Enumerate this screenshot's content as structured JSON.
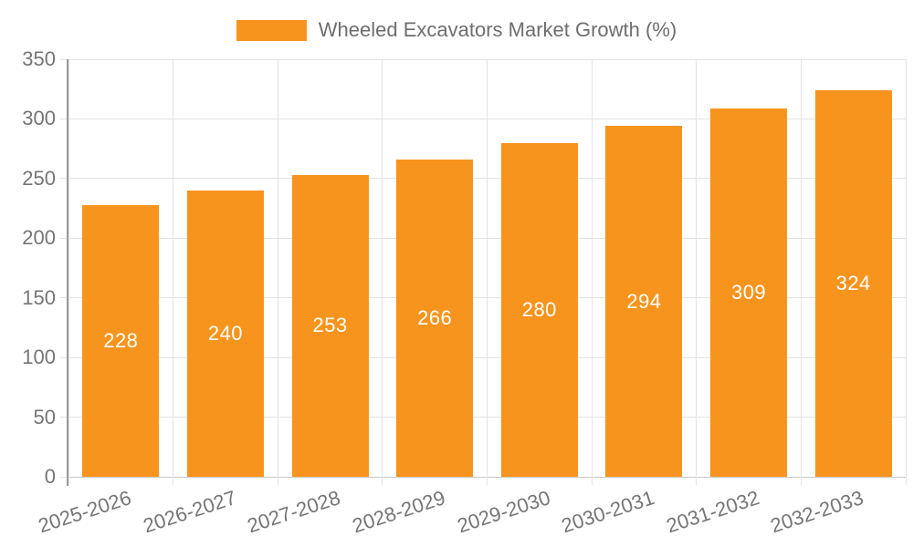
{
  "legend": {
    "label": "Wheeled Excavators Market Growth (%)",
    "swatch_color": "#F7941E"
  },
  "chart_data": {
    "type": "bar",
    "title": "Wheeled Excavators Market Growth (%)",
    "categories": [
      "2025-2026",
      "2026-2027",
      "2027-2028",
      "2028-2029",
      "2029-2030",
      "2030-2031",
      "2031-2032",
      "2032-2033"
    ],
    "values": [
      228,
      240,
      253,
      266,
      280,
      294,
      309,
      324
    ],
    "xlabel": "",
    "ylabel": "",
    "ylim": [
      0,
      350
    ],
    "yticks": [
      0,
      50,
      100,
      150,
      200,
      250,
      300,
      350
    ],
    "grid": true,
    "legend_position": "top-center",
    "x_label_rotation_deg": -18,
    "colors": {
      "bar": "#F7941E",
      "value_label": "#ffffff",
      "grid": "#e3e3e3",
      "baseline": "#c9c9c9",
      "axis": "#9a9a9a",
      "tick_label": "#757575",
      "legend_text": "#6e6e6e",
      "background": "#ffffff"
    }
  }
}
